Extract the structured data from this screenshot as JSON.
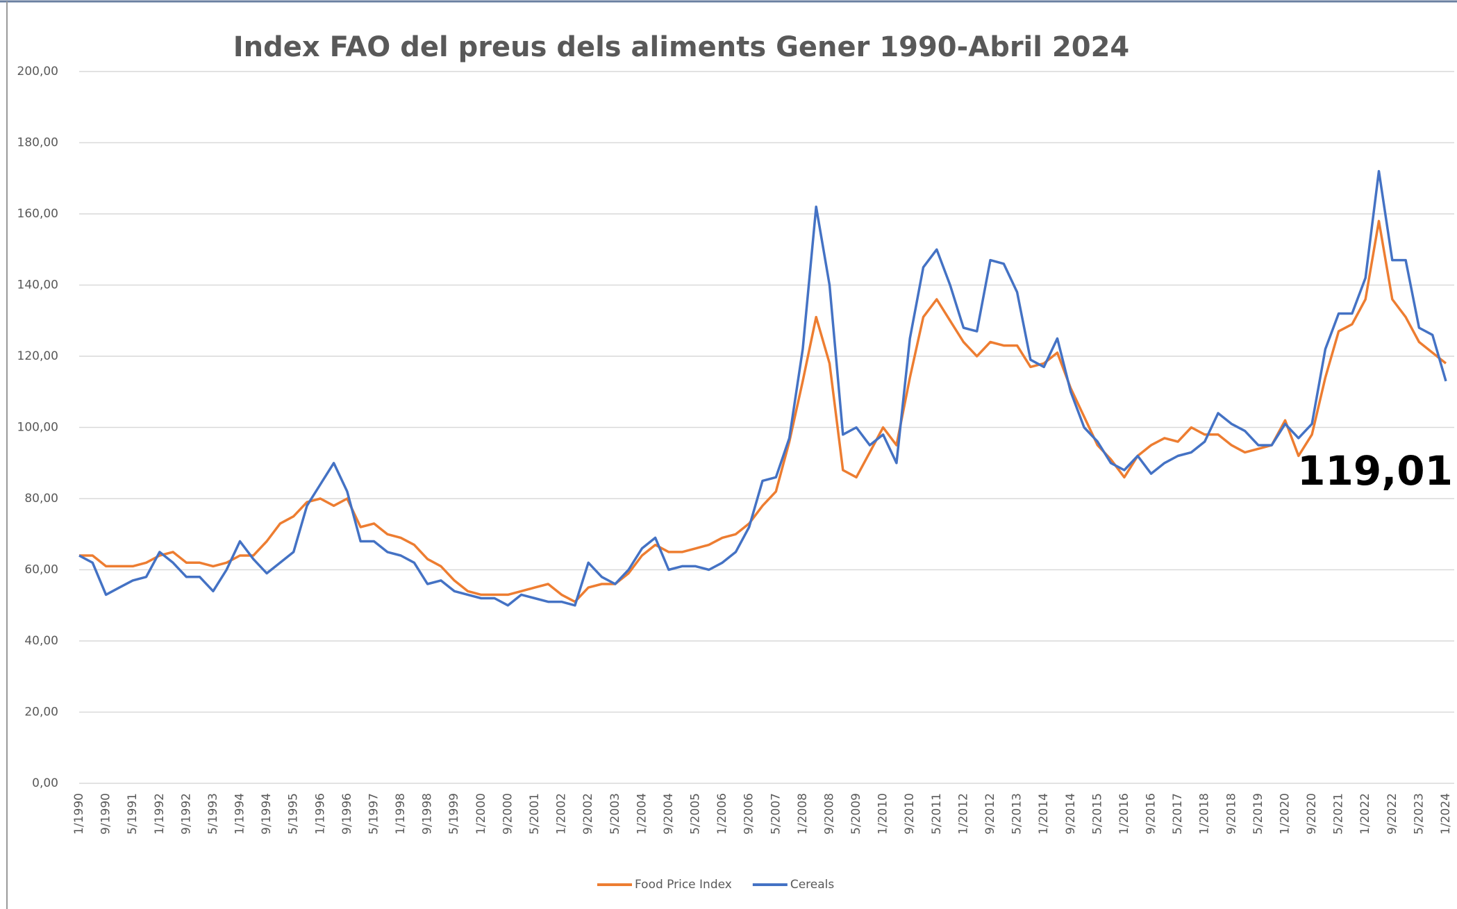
{
  "chart_data": {
    "type": "line",
    "title": "Index FAO del preus dels aliments Gener 1990-Abril 2024",
    "annotation": "119,01",
    "categories": [
      "1/1990",
      null,
      "9/1990",
      null,
      "5/1991",
      null,
      "1/1992",
      null,
      "9/1992",
      null,
      "5/1993",
      null,
      "1/1994",
      null,
      "9/1994",
      null,
      "5/1995",
      null,
      "1/1996",
      null,
      "9/1996",
      null,
      "5/1997",
      null,
      "1/1998",
      null,
      "9/1998",
      null,
      "5/1999",
      null,
      "1/2000",
      null,
      "9/2000",
      null,
      "5/2001",
      null,
      "1/2002",
      null,
      "9/2002",
      null,
      "5/2003",
      null,
      "1/2004",
      null,
      "9/2004",
      null,
      "5/2005",
      null,
      "1/2006",
      null,
      "9/2006",
      null,
      "5/2007",
      null,
      "1/2008",
      null,
      "9/2008",
      null,
      "5/2009",
      null,
      "1/2010",
      null,
      "9/2010",
      null,
      "5/2011",
      null,
      "1/2012",
      null,
      "9/2012",
      null,
      "5/2013",
      null,
      "1/2014",
      null,
      "9/2014",
      null,
      "5/2015",
      null,
      "1/2016",
      null,
      "9/2016",
      null,
      "5/2017",
      null,
      "1/2018",
      null,
      "9/2018",
      null,
      "5/2019",
      null,
      "1/2020",
      null,
      "9/2020",
      null,
      "5/2021",
      null,
      "1/2022",
      null,
      "9/2022",
      null,
      "5/2023",
      null,
      "1/2024"
    ],
    "series": [
      {
        "name": "Food Price Index",
        "color": "#ed7d31",
        "values": [
          64,
          64,
          61,
          61,
          61,
          62,
          64,
          65,
          62,
          62,
          61,
          62,
          64,
          64,
          68,
          73,
          75,
          79,
          80,
          78,
          80,
          72,
          73,
          70,
          69,
          67,
          63,
          61,
          57,
          54,
          53,
          53,
          53,
          54,
          55,
          56,
          53,
          51,
          55,
          56,
          56,
          59,
          64,
          67,
          65,
          65,
          66,
          67,
          69,
          70,
          73,
          78,
          82,
          96,
          113,
          131,
          118,
          88,
          86,
          93,
          100,
          95,
          114,
          131,
          136,
          130,
          124,
          120,
          124,
          123,
          123,
          117,
          118,
          121,
          111,
          103,
          95,
          91,
          86,
          92,
          95,
          97,
          96,
          100,
          98,
          98,
          95,
          93,
          94,
          95,
          102,
          92,
          98,
          114,
          127,
          129,
          136,
          158,
          136,
          131,
          124,
          121,
          118
        ]
      },
      {
        "name": "Cereals",
        "color": "#4472c4",
        "values": [
          64,
          62,
          53,
          55,
          57,
          58,
          65,
          62,
          58,
          58,
          54,
          60,
          68,
          63,
          59,
          62,
          65,
          78,
          84,
          90,
          82,
          68,
          68,
          65,
          64,
          62,
          56,
          57,
          54,
          53,
          52,
          52,
          50,
          53,
          52,
          51,
          51,
          50,
          62,
          58,
          56,
          60,
          66,
          69,
          60,
          61,
          61,
          60,
          62,
          65,
          72,
          85,
          86,
          97,
          122,
          162,
          140,
          98,
          100,
          95,
          98,
          90,
          125,
          145,
          150,
          140,
          128,
          127,
          147,
          146,
          138,
          119,
          117,
          125,
          110,
          100,
          96,
          90,
          88,
          92,
          87,
          90,
          92,
          93,
          96,
          104,
          101,
          99,
          95,
          95,
          101,
          97,
          101,
          122,
          132,
          132,
          142,
          172,
          147,
          147,
          128,
          126,
          113
        ]
      }
    ],
    "ylim": [
      0,
      200
    ],
    "yticks": [
      {
        "value": 0,
        "label": "0,00"
      },
      {
        "value": 20,
        "label": "20,00"
      },
      {
        "value": 40,
        "label": "40,00"
      },
      {
        "value": 60,
        "label": "60,00"
      },
      {
        "value": 80,
        "label": "80,00"
      },
      {
        "value": 100,
        "label": "100,00"
      },
      {
        "value": 120,
        "label": "120,00"
      },
      {
        "value": 140,
        "label": "140,00"
      },
      {
        "value": 160,
        "label": "160,00"
      },
      {
        "value": 180,
        "label": "180,00"
      },
      {
        "value": 200,
        "label": "200,00"
      }
    ],
    "grid": true,
    "legend": "bottom"
  }
}
